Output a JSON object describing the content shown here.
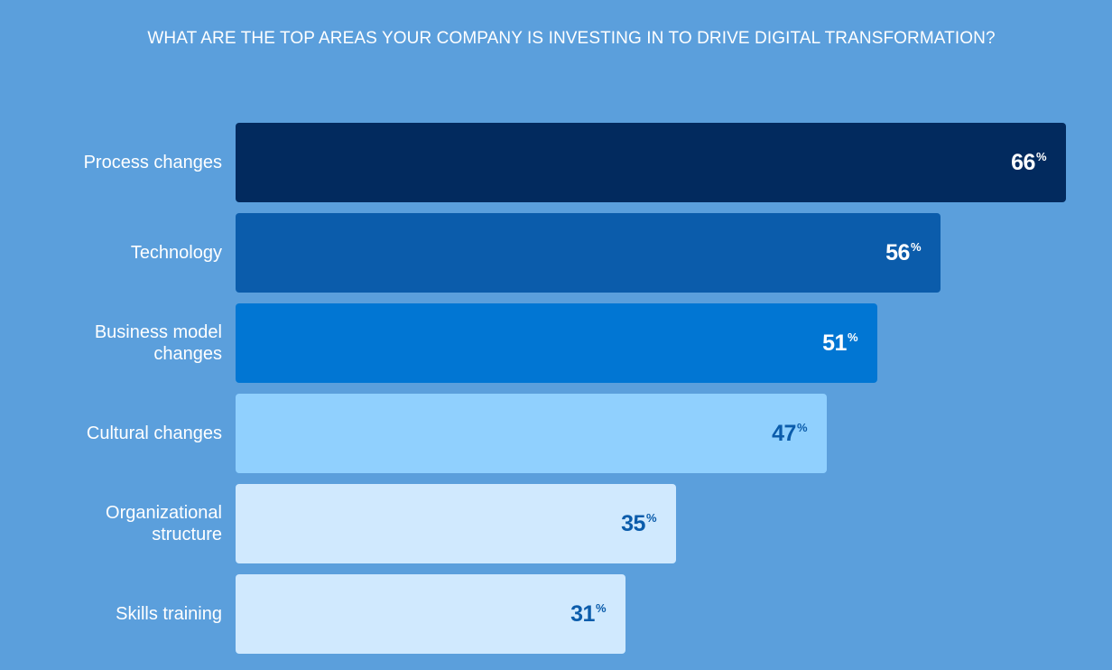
{
  "chart_data": {
    "type": "bar",
    "orientation": "horizontal",
    "title": "WHAT ARE THE TOP AREAS YOUR COMPANY IS INVESTING IN TO DRIVE DIGITAL TRANSFORMATION?",
    "categories": [
      "Process changes",
      "Technology",
      "Business model changes",
      "Cultural changes",
      "Organizational structure",
      "Skills training"
    ],
    "label_lines": [
      [
        "Process changes"
      ],
      [
        "Technology"
      ],
      [
        "Business model",
        "changes"
      ],
      [
        "Cultural changes"
      ],
      [
        "Organizational",
        "structure"
      ],
      [
        "Skills training"
      ]
    ],
    "values": [
      66,
      56,
      51,
      47,
      35,
      31
    ],
    "value_labels": [
      "66",
      "56",
      "51",
      "47",
      "35",
      "31"
    ],
    "unit": "%",
    "xlim": [
      0,
      66
    ],
    "grid": false,
    "legend": "none",
    "bar_colors": [
      "#022a5e",
      "#0b5cab",
      "#0176d3",
      "#90d0fe",
      "#d0e9fe",
      "#d0e9fe"
    ],
    "value_label_colors": [
      "#ffffff",
      "#ffffff",
      "#ffffff",
      "#0b5cab",
      "#0b5cab",
      "#0b5cab"
    ]
  },
  "colors": {
    "background": "#5b9fdc",
    "text": "#ffffff"
  }
}
